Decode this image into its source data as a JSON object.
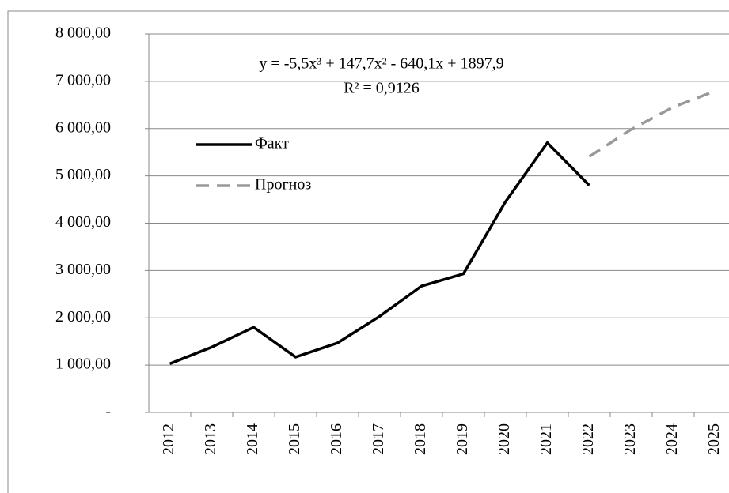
{
  "chart_data": {
    "type": "line",
    "categories": [
      "2012",
      "2013",
      "2014",
      "2015",
      "2016",
      "2017",
      "2018",
      "2019",
      "2020",
      "2021",
      "2022",
      "2023",
      "2024",
      "2025"
    ],
    "series": [
      {
        "name": "Факт",
        "color": "#000000",
        "dash": false,
        "values": [
          1030,
          1380,
          1800,
          1170,
          1470,
          2030,
          2670,
          2930,
          4450,
          5700,
          4800,
          null,
          null,
          null
        ]
      },
      {
        "name": "Прогноз",
        "color": "#999999",
        "dash": true,
        "values": [
          null,
          null,
          null,
          null,
          null,
          null,
          null,
          null,
          null,
          null,
          5408,
          5982,
          6454,
          6794
        ]
      }
    ],
    "ylim": [
      0,
      8000
    ],
    "yticks": [
      {
        "value": 0,
        "label": "-"
      },
      {
        "value": 1000,
        "label": "1 000,00"
      },
      {
        "value": 2000,
        "label": "2 000,00"
      },
      {
        "value": 3000,
        "label": "3 000,00"
      },
      {
        "value": 4000,
        "label": "4 000,00"
      },
      {
        "value": 5000,
        "label": "5 000,00"
      },
      {
        "value": 6000,
        "label": "6 000,00"
      },
      {
        "value": 7000,
        "label": "7 000,00"
      },
      {
        "value": 8000,
        "label": "8 000,00"
      }
    ],
    "grid": true,
    "annotations": [
      "y = -5,5x³ + 147,7x² - 640,1x + 1897,9",
      "R² = 0,9126"
    ]
  }
}
